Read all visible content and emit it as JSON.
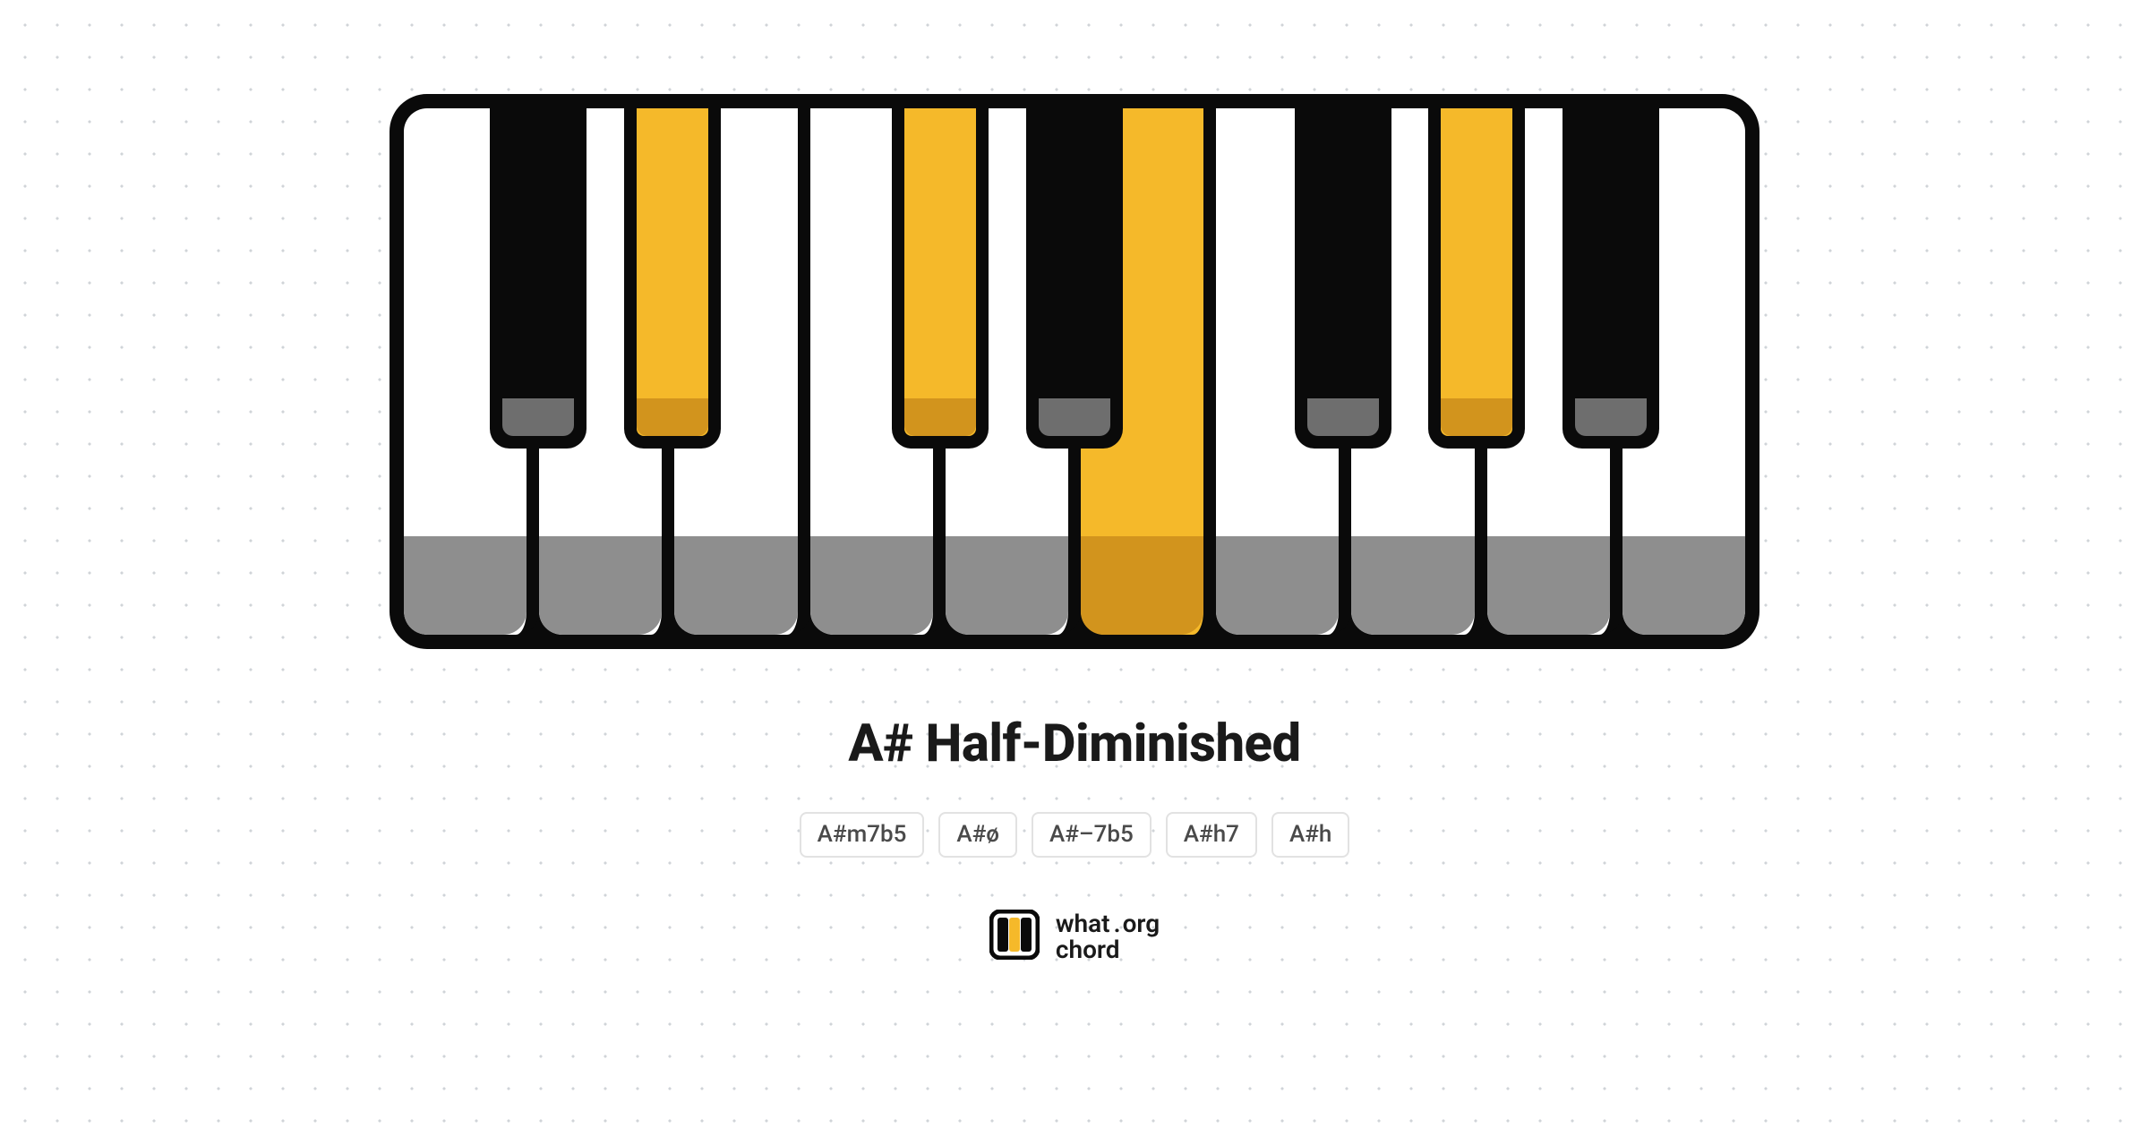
{
  "chord": {
    "title": "A# Half-Diminished",
    "aliases": [
      "A#m7b5",
      "A#ø",
      "A#–7b5",
      "A#h7",
      "A#h"
    ]
  },
  "brand": {
    "line1_left": "what",
    "line1_right": "org",
    "line2": "chord"
  },
  "keyboard": {
    "type": "piano-chord-diagram",
    "colors": {
      "highlight": "#f5b92a",
      "highlight_shade": "#d2941d",
      "white_shade": "#8e8e8e",
      "black_shade": "#6e6e6e",
      "outline": "#0a0a0a",
      "background": "#ffffff"
    },
    "white_keys": [
      {
        "note": "G",
        "highlighted": false
      },
      {
        "note": "A",
        "highlighted": false
      },
      {
        "note": "B",
        "highlighted": false
      },
      {
        "note": "C",
        "highlighted": false
      },
      {
        "note": "D",
        "highlighted": false
      },
      {
        "note": "E",
        "highlighted": true
      },
      {
        "note": "F",
        "highlighted": false
      },
      {
        "note": "G",
        "highlighted": false
      },
      {
        "note": "A",
        "highlighted": false
      },
      {
        "note": "B",
        "highlighted": false
      }
    ],
    "black_keys": [
      {
        "note": "G#",
        "after_white_index": 0,
        "highlighted": false
      },
      {
        "note": "A#",
        "after_white_index": 1,
        "highlighted": true
      },
      {
        "note": "C#",
        "after_white_index": 3,
        "highlighted": true
      },
      {
        "note": "D#",
        "after_white_index": 4,
        "highlighted": false
      },
      {
        "note": "F#",
        "after_white_index": 6,
        "highlighted": false
      },
      {
        "note": "G#",
        "after_white_index": 7,
        "highlighted": true
      },
      {
        "note": "A#",
        "after_white_index": 8,
        "highlighted": false
      }
    ]
  }
}
